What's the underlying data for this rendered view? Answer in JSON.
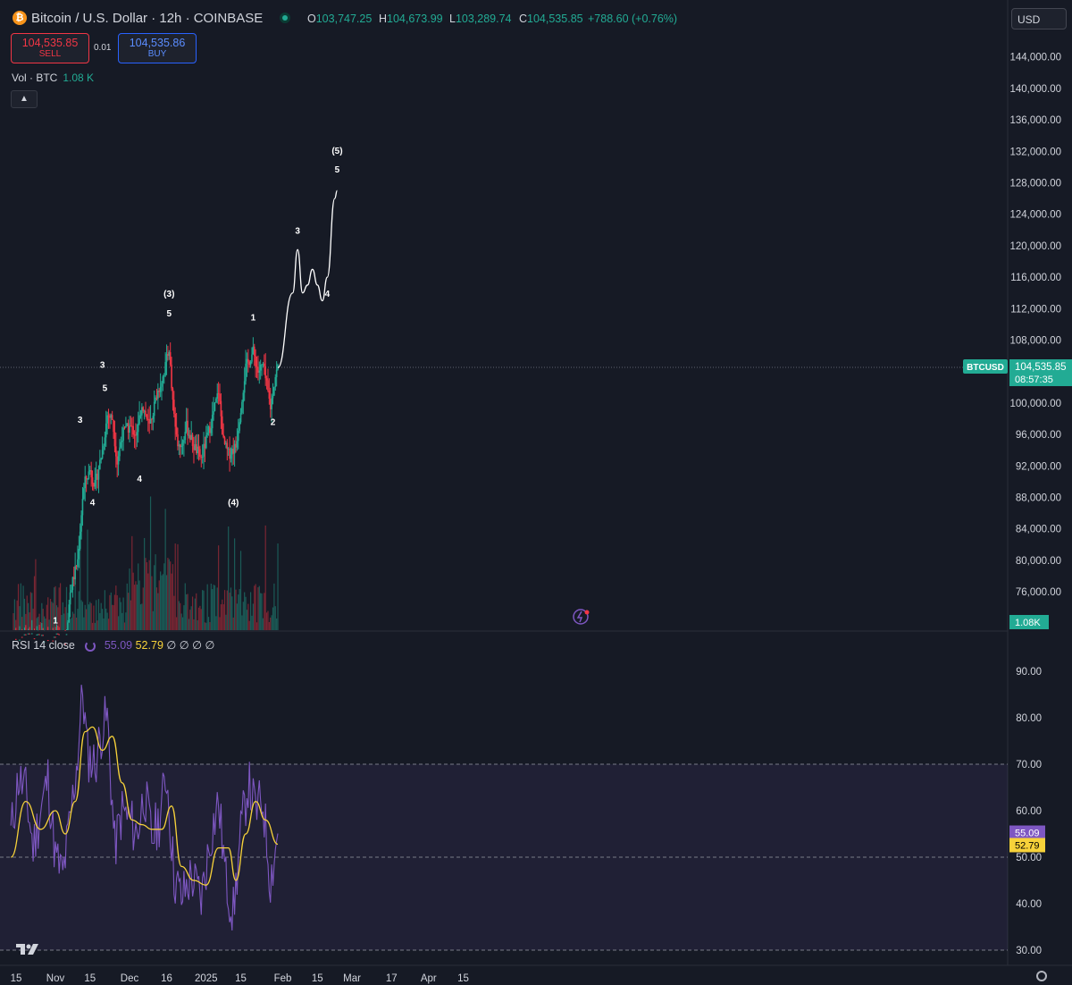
{
  "header": {
    "symbol": "Bitcoin / U.S. Dollar · 12h · COINBASE",
    "logo_letter": "₿",
    "ohlc": {
      "o_label": "O",
      "o": "103,747.25",
      "h_label": "H",
      "h": "104,673.99",
      "l_label": "L",
      "l": "103,289.74",
      "c_label": "C",
      "c": "104,535.85",
      "change": "+788.60 (+0.76%)"
    },
    "sell_price": "104,535.85",
    "sell_label": "SELL",
    "spread": "0.01",
    "buy_price": "104,535.86",
    "buy_label": "BUY",
    "volume_label": "Vol · BTC",
    "volume_value": "1.08 K",
    "collapse_icon": "chevron-up-icon",
    "currency": "USD"
  },
  "colors": {
    "background": "#161a25",
    "up": "#22ab94",
    "down": "#f23645",
    "rsi": "#7e57c2",
    "rsi_ma": "#f7d23a",
    "projection": "#ffffff"
  },
  "price_axis": {
    "labels": [
      "144,000.00",
      "140,000.00",
      "136,000.00",
      "132,000.00",
      "128,000.00",
      "124,000.00",
      "120,000.00",
      "116,000.00",
      "112,000.00",
      "108,000.00",
      "104,000.00",
      "100,000.00",
      "96,000.00",
      "92,000.00",
      "88,000.00",
      "84,000.00",
      "80,000.00",
      "76,000.00"
    ],
    "last_symbol_tag": "BTCUSD",
    "last_price": "104,535.85",
    "countdown": "08:57:35",
    "volume_tag": "1.08K"
  },
  "rsi_panel": {
    "label": "RSI 14 close",
    "rsi_value": "55.09",
    "ma_value": "52.79",
    "extra_values": [
      "∅",
      "∅",
      "∅",
      "∅"
    ],
    "axis_labels": [
      "90.00",
      "80.00",
      "70.00",
      "60.00",
      "50.00",
      "40.00",
      "30.00"
    ]
  },
  "time_axis": {
    "labels": [
      "15",
      "Nov",
      "15",
      "Dec",
      "16",
      "2025",
      "15",
      "Feb",
      "15",
      "Mar",
      "17",
      "Apr",
      "15"
    ]
  },
  "wave_labels": [
    "1",
    "3",
    "4",
    "3",
    "5",
    "4",
    "(3)",
    "5",
    "(4)",
    "1",
    "2",
    "3",
    "4",
    "(5)",
    "5"
  ],
  "chart_data": [
    {
      "type": "candlestick",
      "title": "Bitcoin / U.S. Dollar · 12h · COINBASE",
      "y_axis_ticks": [
        76000,
        80000,
        84000,
        88000,
        92000,
        96000,
        100000,
        104000,
        108000,
        112000,
        116000,
        120000,
        124000,
        128000,
        132000,
        136000,
        140000,
        144000
      ],
      "x_axis_ticks": [
        "15",
        "Nov",
        "15",
        "Dec",
        "16",
        "2025",
        "15",
        "Feb",
        "15",
        "Mar",
        "17",
        "Apr",
        "15"
      ],
      "last_close": 104535.85,
      "approx_closes": [
        {
          "date": "2024-11-01",
          "close": 70000
        },
        {
          "date": "2024-11-05",
          "close": 69500
        },
        {
          "date": "2024-11-07",
          "close": 76000
        },
        {
          "date": "2024-11-10",
          "close": 80000
        },
        {
          "date": "2024-11-12",
          "close": 88000
        },
        {
          "date": "2024-11-13",
          "close": 90000
        },
        {
          "date": "2024-11-15",
          "close": 91500
        },
        {
          "date": "2024-11-17",
          "close": 89500
        },
        {
          "date": "2024-11-20",
          "close": 94000
        },
        {
          "date": "2024-11-22",
          "close": 98500
        },
        {
          "date": "2024-11-24",
          "close": 98000
        },
        {
          "date": "2024-11-26",
          "close": 92500
        },
        {
          "date": "2024-11-28",
          "close": 96000
        },
        {
          "date": "2024-12-01",
          "close": 97000
        },
        {
          "date": "2024-12-04",
          "close": 96000
        },
        {
          "date": "2024-12-06",
          "close": 100000
        },
        {
          "date": "2024-12-09",
          "close": 97000
        },
        {
          "date": "2024-12-12",
          "close": 101000
        },
        {
          "date": "2024-12-15",
          "close": 104000
        },
        {
          "date": "2024-12-17",
          "close": 107000
        },
        {
          "date": "2024-12-18",
          "close": 102000
        },
        {
          "date": "2024-12-20",
          "close": 95500
        },
        {
          "date": "2024-12-22",
          "close": 94500
        },
        {
          "date": "2024-12-24",
          "close": 97000
        },
        {
          "date": "2024-12-27",
          "close": 94500
        },
        {
          "date": "2024-12-30",
          "close": 93000
        },
        {
          "date": "2025-01-03",
          "close": 97500
        },
        {
          "date": "2025-01-06",
          "close": 101500
        },
        {
          "date": "2025-01-08",
          "close": 95000
        },
        {
          "date": "2025-01-10",
          "close": 93500
        },
        {
          "date": "2025-01-13",
          "close": 94500
        },
        {
          "date": "2025-01-15",
          "close": 99500
        },
        {
          "date": "2025-01-17",
          "close": 104500
        },
        {
          "date": "2025-01-20",
          "close": 106500
        },
        {
          "date": "2025-01-22",
          "close": 104000
        },
        {
          "date": "2025-01-24",
          "close": 104800
        },
        {
          "date": "2025-01-27",
          "close": 99500
        },
        {
          "date": "2025-01-29",
          "close": 103500
        },
        {
          "date": "2025-01-30",
          "close": 104535.85
        }
      ],
      "projection_path": [
        {
          "date": "2025-01-30",
          "price": 104500
        },
        {
          "date": "2025-02-05",
          "price": 114000
        },
        {
          "date": "2025-02-07",
          "price": 119500
        },
        {
          "date": "2025-02-09",
          "price": 114000
        },
        {
          "date": "2025-02-11",
          "price": 115000
        },
        {
          "date": "2025-02-13",
          "price": 117000
        },
        {
          "date": "2025-02-15",
          "price": 115000
        },
        {
          "date": "2025-02-17",
          "price": 113000
        },
        {
          "date": "2025-02-19",
          "price": 116000
        },
        {
          "date": "2025-02-22",
          "price": 126000
        },
        {
          "date": "2025-02-23",
          "price": 127000
        }
      ],
      "wave_annotations": [
        {
          "label": "1",
          "date": "2024-11-01",
          "price": 72000
        },
        {
          "label": "3",
          "date": "2024-11-11",
          "price": 97500
        },
        {
          "label": "4",
          "date": "2024-11-16",
          "price": 87000
        },
        {
          "label": "3",
          "date": "2024-11-20",
          "price": 104500
        },
        {
          "label": "5",
          "date": "2024-11-21",
          "price": 101500
        },
        {
          "label": "4",
          "date": "2024-12-05",
          "price": 90000
        },
        {
          "label": "(3)",
          "date": "2024-12-17",
          "price": 113500
        },
        {
          "label": "5",
          "date": "2024-12-17",
          "price": 111000
        },
        {
          "label": "(4)",
          "date": "2025-01-12",
          "price": 87000
        },
        {
          "label": "1",
          "date": "2025-01-20",
          "price": 110500
        },
        {
          "label": "2",
          "date": "2025-01-28",
          "price": 97200
        },
        {
          "label": "3",
          "date": "2025-02-07",
          "price": 121500
        },
        {
          "label": "4",
          "date": "2025-02-19",
          "price": 113500
        },
        {
          "label": "(5)",
          "date": "2025-02-23",
          "price": 131700
        },
        {
          "label": "5",
          "date": "2025-02-23",
          "price": 129300
        }
      ]
    },
    {
      "type": "bar",
      "title": "Vol · BTC",
      "last_value": "1.08K"
    },
    {
      "type": "line",
      "title": "RSI 14 close",
      "y_axis_ticks": [
        30,
        40,
        50,
        60,
        70,
        80,
        90
      ],
      "upper_band": 70,
      "lower_band": 30,
      "middle_band": 50,
      "series": [
        {
          "name": "RSI",
          "last": 55.09,
          "approx_values": [
            {
              "date": "2024-10-14",
              "value": 55
            },
            {
              "date": "2024-10-17",
              "value": 67
            },
            {
              "date": "2024-10-20",
              "value": 64
            },
            {
              "date": "2024-10-23",
              "value": 52
            },
            {
              "date": "2024-10-26",
              "value": 60
            },
            {
              "date": "2024-10-29",
              "value": 67
            },
            {
              "date": "2024-11-01",
              "value": 50
            },
            {
              "date": "2024-11-04",
              "value": 46
            },
            {
              "date": "2024-11-07",
              "value": 58
            },
            {
              "date": "2024-11-10",
              "value": 72
            },
            {
              "date": "2024-11-12",
              "value": 86
            },
            {
              "date": "2024-11-14",
              "value": 72
            },
            {
              "date": "2024-11-17",
              "value": 70
            },
            {
              "date": "2024-11-20",
              "value": 78
            },
            {
              "date": "2024-11-22",
              "value": 80
            },
            {
              "date": "2024-11-25",
              "value": 52
            },
            {
              "date": "2024-11-28",
              "value": 60
            },
            {
              "date": "2024-12-01",
              "value": 58
            },
            {
              "date": "2024-12-04",
              "value": 55
            },
            {
              "date": "2024-12-07",
              "value": 64
            },
            {
              "date": "2024-12-10",
              "value": 54
            },
            {
              "date": "2024-12-13",
              "value": 58
            },
            {
              "date": "2024-12-16",
              "value": 68
            },
            {
              "date": "2024-12-19",
              "value": 46
            },
            {
              "date": "2024-12-22",
              "value": 41
            },
            {
              "date": "2024-12-26",
              "value": 46
            },
            {
              "date": "2024-12-30",
              "value": 41
            },
            {
              "date": "2025-01-03",
              "value": 55
            },
            {
              "date": "2025-01-06",
              "value": 62
            },
            {
              "date": "2025-01-09",
              "value": 45
            },
            {
              "date": "2025-01-12",
              "value": 38
            },
            {
              "date": "2025-01-15",
              "value": 55
            },
            {
              "date": "2025-01-18",
              "value": 66
            },
            {
              "date": "2025-01-21",
              "value": 60
            },
            {
              "date": "2025-01-24",
              "value": 62
            },
            {
              "date": "2025-01-27",
              "value": 45
            },
            {
              "date": "2025-01-30",
              "value": 55.09
            }
          ]
        },
        {
          "name": "RSI-based MA",
          "last": 52.79,
          "approx_values": [
            {
              "date": "2024-10-14",
              "value": 50
            },
            {
              "date": "2024-10-20",
              "value": 62
            },
            {
              "date": "2024-10-26",
              "value": 56
            },
            {
              "date": "2024-11-01",
              "value": 60
            },
            {
              "date": "2024-11-05",
              "value": 55
            },
            {
              "date": "2024-11-09",
              "value": 62
            },
            {
              "date": "2024-11-13",
              "value": 77
            },
            {
              "date": "2024-11-16",
              "value": 78
            },
            {
              "date": "2024-11-20",
              "value": 73
            },
            {
              "date": "2024-11-24",
              "value": 76
            },
            {
              "date": "2024-11-28",
              "value": 66
            },
            {
              "date": "2024-12-02",
              "value": 58
            },
            {
              "date": "2024-12-06",
              "value": 57
            },
            {
              "date": "2024-12-10",
              "value": 56
            },
            {
              "date": "2024-12-14",
              "value": 56
            },
            {
              "date": "2024-12-18",
              "value": 61
            },
            {
              "date": "2024-12-22",
              "value": 48
            },
            {
              "date": "2024-12-27",
              "value": 45
            },
            {
              "date": "2025-01-01",
              "value": 44
            },
            {
              "date": "2025-01-06",
              "value": 52
            },
            {
              "date": "2025-01-10",
              "value": 52
            },
            {
              "date": "2025-01-13",
              "value": 45
            },
            {
              "date": "2025-01-17",
              "value": 55
            },
            {
              "date": "2025-01-21",
              "value": 62
            },
            {
              "date": "2025-01-25",
              "value": 58
            },
            {
              "date": "2025-01-30",
              "value": 52.79
            }
          ]
        }
      ]
    }
  ]
}
